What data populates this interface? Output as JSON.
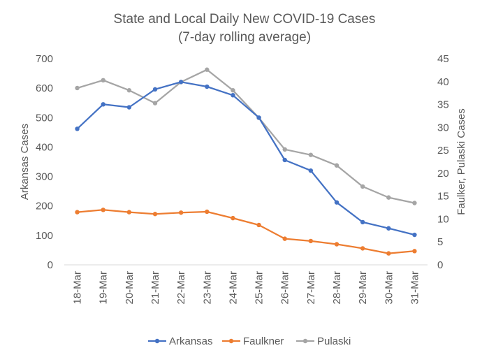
{
  "chart_data": {
    "type": "line",
    "title": "State and Local Daily New COVID-19 Cases",
    "subtitle": "(7-day rolling average)",
    "categories": [
      "18-Mar",
      "19-Mar",
      "20-Mar",
      "21-Mar",
      "22-Mar",
      "23-Mar",
      "24-Mar",
      "25-Mar",
      "26-Mar",
      "27-Mar",
      "28-Mar",
      "29-Mar",
      "30-Mar",
      "31-Mar"
    ],
    "ylabel": "Arkansas Cases",
    "y2label": "Faulker, Pulaski Cases",
    "ylim": [
      0,
      700
    ],
    "y2lim": [
      0,
      45
    ],
    "yticks": [
      "0",
      "100",
      "200",
      "300",
      "400",
      "500",
      "600",
      "700"
    ],
    "y2ticks": [
      "0",
      "5",
      "10",
      "15",
      "20",
      "25",
      "30",
      "35",
      "40",
      "45"
    ],
    "grid": false,
    "legend_position": "bottom",
    "series": [
      {
        "name": "Arkansas",
        "axis": "left",
        "color": "#4472C4",
        "values": [
          462,
          545,
          535,
          596,
          621,
          605,
          576,
          500,
          356,
          320,
          212,
          145,
          124,
          102
        ]
      },
      {
        "name": "Faulkner",
        "axis": "right",
        "color": "#ED7D31",
        "values": [
          11.5,
          12.0,
          11.5,
          11.1,
          11.4,
          11.6,
          10.2,
          8.7,
          5.7,
          5.2,
          4.5,
          3.6,
          2.5,
          3.0
        ]
      },
      {
        "name": "Pulaski",
        "axis": "right",
        "color": "#A5A5A5",
        "values": [
          38.6,
          40.3,
          38.1,
          35.3,
          39.9,
          42.6,
          38.1,
          32.1,
          25.2,
          24.0,
          21.7,
          17.1,
          14.7,
          13.5
        ]
      }
    ]
  }
}
